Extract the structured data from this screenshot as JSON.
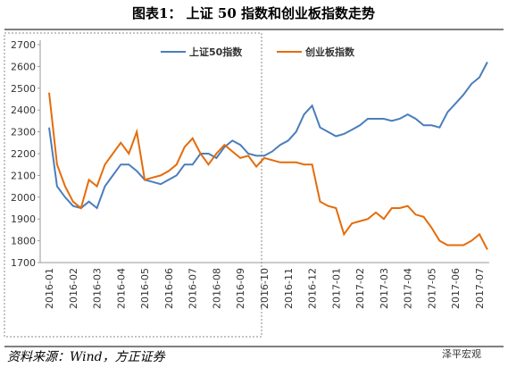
{
  "chart_data": {
    "type": "line",
    "title": "图表1：  上证 50 指数和创业板指数走势",
    "source": "资料来源：Wind，方正证券",
    "watermark": "泽平宏观",
    "categories": [
      "2016-01",
      null,
      null,
      "2016-02",
      null,
      null,
      "2016-03",
      null,
      null,
      "2016-04",
      null,
      null,
      "2016-05",
      null,
      null,
      "2016-06",
      null,
      null,
      "2016-07",
      null,
      null,
      "2016-08",
      null,
      null,
      "2016-09",
      null,
      null,
      "2016-10",
      null,
      null,
      "2016-11",
      null,
      null,
      "2016-12",
      null,
      null,
      "2017-01",
      null,
      null,
      "2017-02",
      null,
      null,
      "2017-03",
      null,
      null,
      "2017-04",
      null,
      null,
      "2017-05",
      null,
      null,
      "2017-06",
      null,
      null,
      "2017-07",
      null
    ],
    "series": [
      {
        "name": "上证50指数",
        "color": "#4a7ebb",
        "values": [
          2320,
          2050,
          2000,
          1960,
          1950,
          1980,
          1950,
          2050,
          2100,
          2150,
          2150,
          2120,
          2080,
          2070,
          2060,
          2080,
          2100,
          2150,
          2150,
          2200,
          2200,
          2180,
          2230,
          2260,
          2240,
          2200,
          2190,
          2190,
          2210,
          2240,
          2260,
          2300,
          2380,
          2420,
          2320,
          2300,
          2280,
          2290,
          2310,
          2330,
          2360,
          2360,
          2360,
          2350,
          2360,
          2380,
          2360,
          2330,
          2330,
          2320,
          2390,
          2430,
          2470,
          2520,
          2550,
          2620
        ]
      },
      {
        "name": "创业板指数",
        "color": "#e46c0a",
        "values": [
          2480,
          2150,
          2050,
          1980,
          1950,
          2080,
          2050,
          2150,
          2200,
          2250,
          2200,
          2300,
          2080,
          2090,
          2100,
          2120,
          2150,
          2230,
          2270,
          2200,
          2150,
          2200,
          2240,
          2210,
          2180,
          2190,
          2140,
          2180,
          2170,
          2160,
          2160,
          2160,
          2150,
          2150,
          1980,
          1960,
          1950,
          1830,
          1880,
          1890,
          1900,
          1930,
          1900,
          1950,
          1950,
          1960,
          1920,
          1910,
          1860,
          1800,
          1780,
          1780,
          1780,
          1800,
          1830,
          1760
        ]
      }
    ],
    "ylim": [
      1700,
      2700
    ],
    "yticks": [
      1700,
      1800,
      1900,
      2000,
      2100,
      2200,
      2300,
      2400,
      2500,
      2600,
      2700
    ],
    "legend": "top"
  }
}
